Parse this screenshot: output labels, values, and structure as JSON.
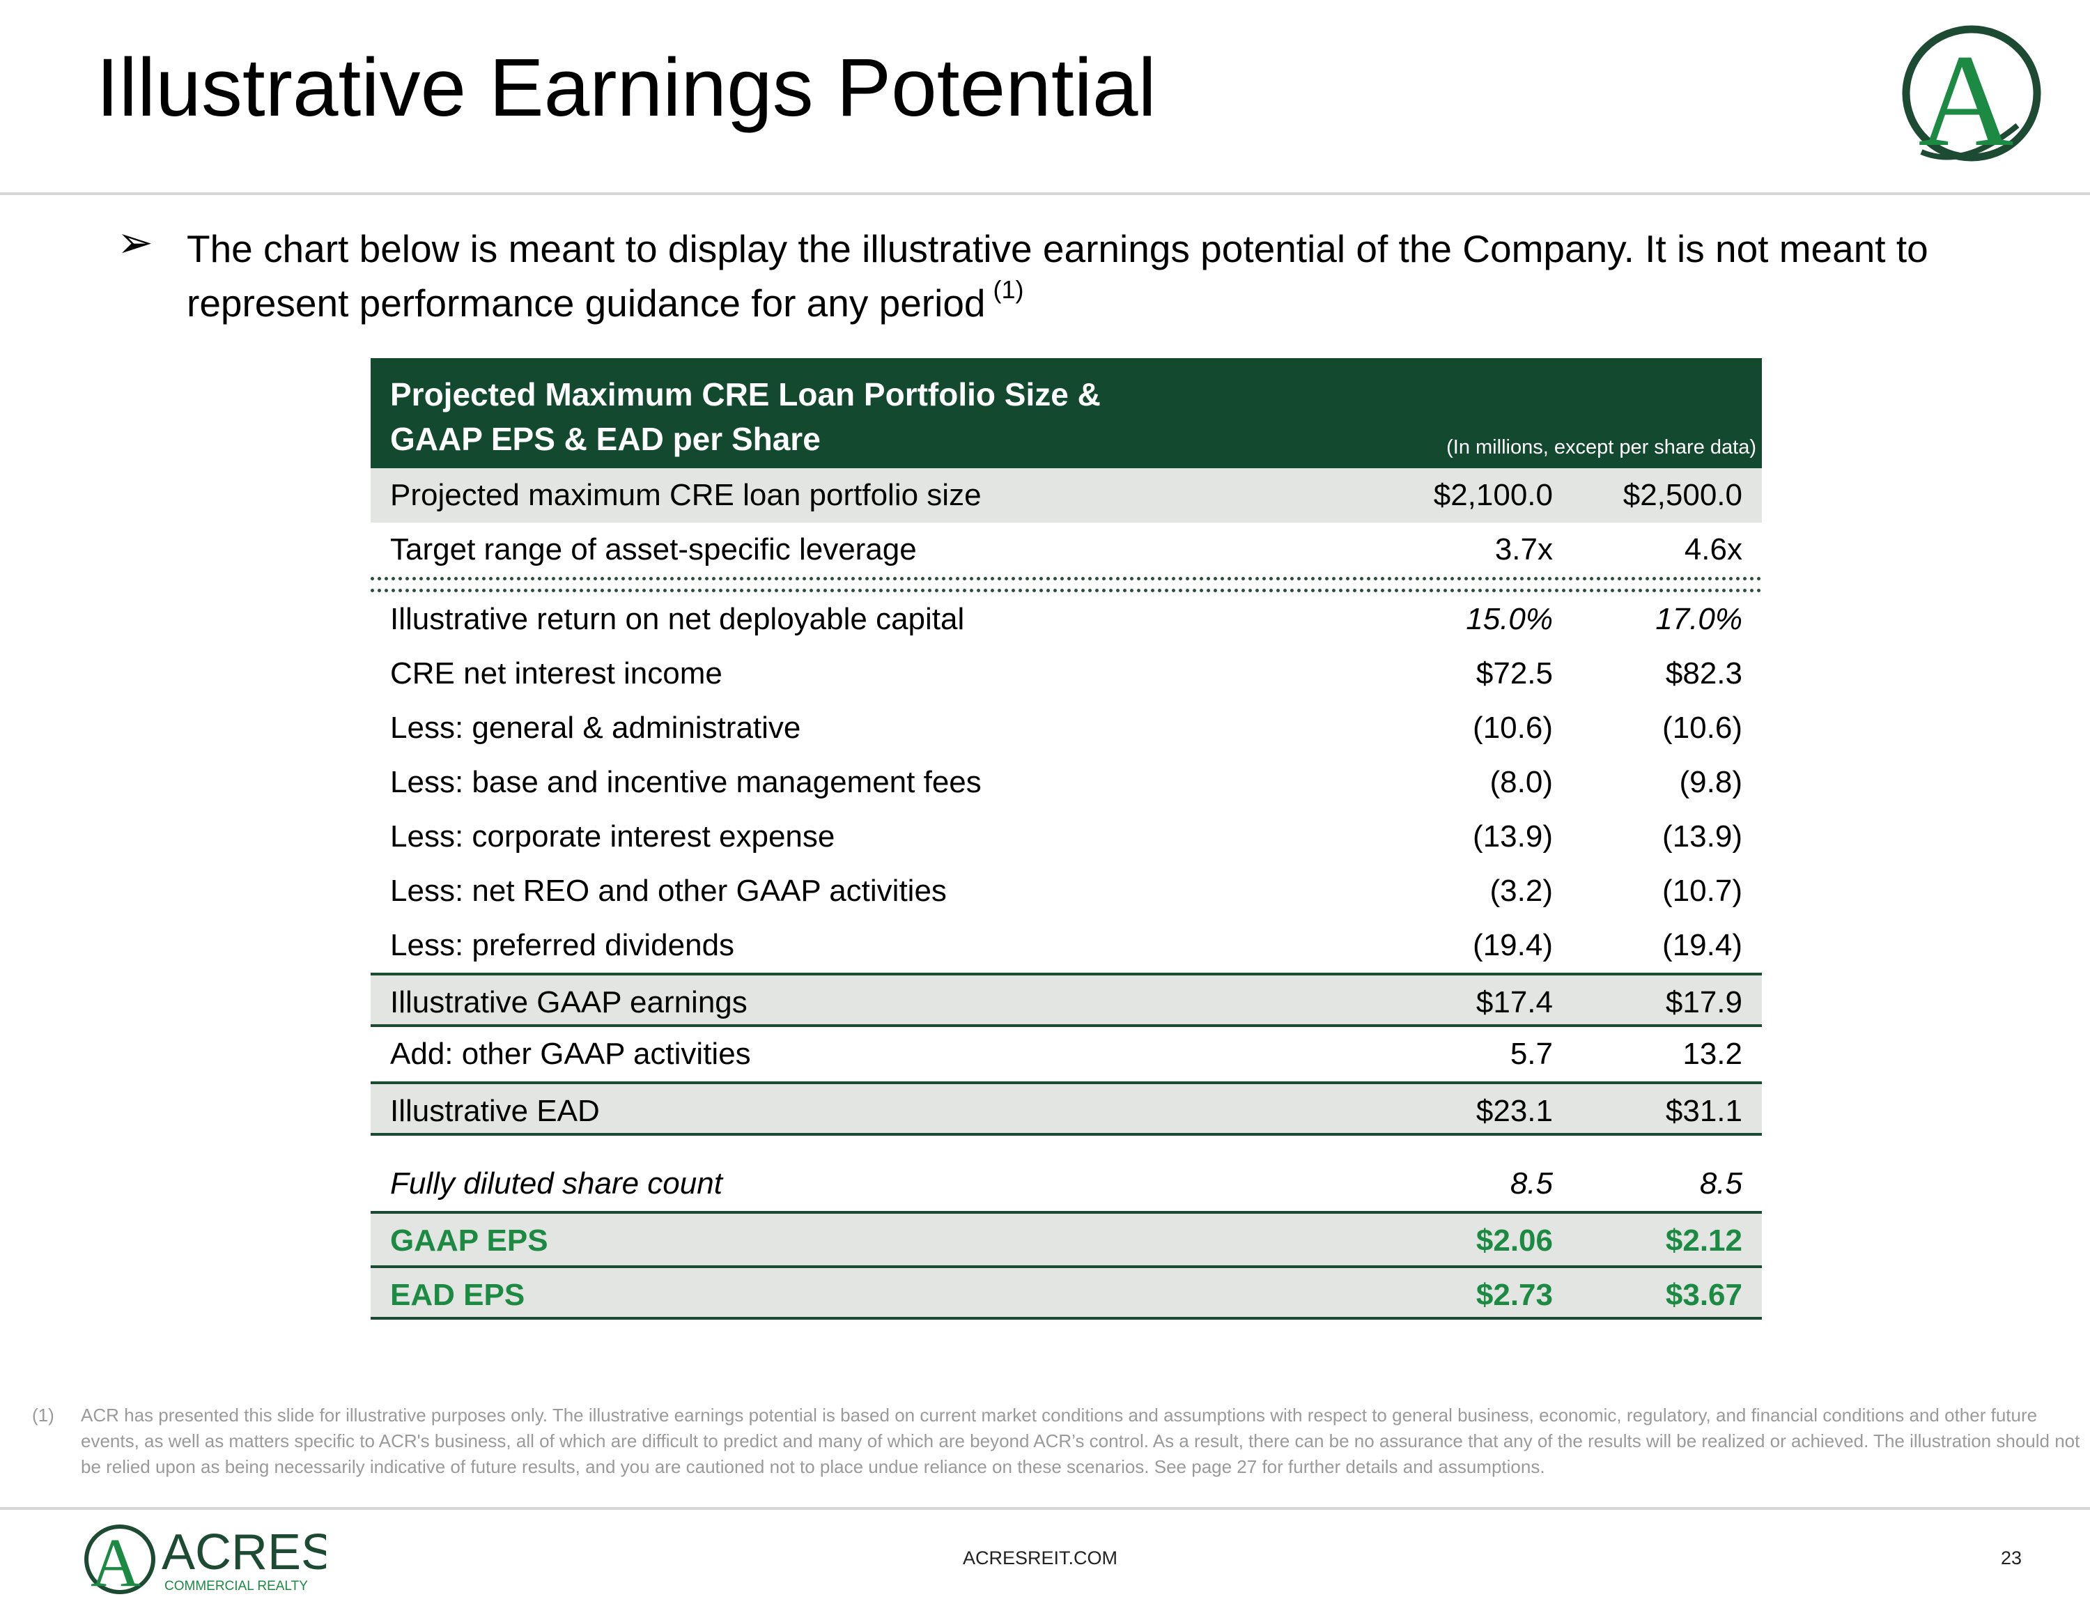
{
  "header": {
    "title": "Illustrative Earnings Potential",
    "logo_letter": "A"
  },
  "intro": {
    "text": "The chart below is meant to display the illustrative earnings potential of the Company.  It is not meant to represent performance guidance for any period",
    "footnote_ref": "(1)"
  },
  "table": {
    "title_line1": "Projected Maximum CRE Loan Portfolio Size &",
    "title_line2": "GAAP EPS & EAD per Share",
    "unit_note": "(In millions, except per share data)",
    "rows": [
      {
        "label": "Projected maximum CRE loan portfolio size",
        "v1": "$2,100.0",
        "v2": "$2,500.0"
      },
      {
        "label": "Target range of asset-specific leverage",
        "v1": "3.7x",
        "v2": "4.6x"
      },
      {
        "label": "Illustrative return on net deployable capital",
        "v1": "15.0%",
        "v2": "17.0%"
      },
      {
        "label": "CRE net interest income",
        "v1": "$72.5",
        "v2": "$82.3"
      },
      {
        "label": "Less: general & administrative",
        "v1": "(10.6)",
        "v2": "(10.6)"
      },
      {
        "label": "Less: base and incentive management fees",
        "v1": "(8.0)",
        "v2": "(9.8)"
      },
      {
        "label": "Less: corporate interest expense",
        "v1": "(13.9)",
        "v2": "(13.9)"
      },
      {
        "label": "Less: net REO and other GAAP activities",
        "v1": "(3.2)",
        "v2": "(10.7)"
      },
      {
        "label": "Less: preferred dividends",
        "v1": "(19.4)",
        "v2": "(19.4)"
      },
      {
        "label": "Illustrative GAAP earnings",
        "v1": "$17.4",
        "v2": "$17.9"
      },
      {
        "label": "Add: other GAAP activities",
        "v1": "5.7",
        "v2": "13.2"
      },
      {
        "label": "Illustrative EAD",
        "v1": "$23.1",
        "v2": "$31.1"
      },
      {
        "label": "Fully diluted share count",
        "v1": "8.5",
        "v2": "8.5"
      },
      {
        "label": "GAAP EPS",
        "v1": "$2.06",
        "v2": "$2.12"
      },
      {
        "label": "EAD EPS",
        "v1": "$2.73",
        "v2": "$3.67"
      }
    ]
  },
  "footnote": {
    "number": "(1)",
    "text": "ACR has presented this slide for illustrative purposes only. The illustrative earnings potential is based on current market conditions and assumptions with respect to general business, economic, regulatory, and financial conditions and other future events, as well as matters specific to ACR's business, all of which are difficult to predict and many of which are beyond ACR’s control. As a result, there can be no assurance that any of the results will be realized or achieved. The illustration should not be relied upon as being necessarily indicative of future results, and you are cautioned not to place undue reliance on these scenarios. See page 27 for further details and assumptions."
  },
  "footer": {
    "brand": "ACRES",
    "brand_sub": "COMMERCIAL REALTY",
    "url": "ACRESREIT.COM",
    "page_number": "23"
  },
  "colors": {
    "brand_green": "#1c8a43",
    "header_dark_green": "#134a2f",
    "row_shade": "#e3e5e3"
  }
}
